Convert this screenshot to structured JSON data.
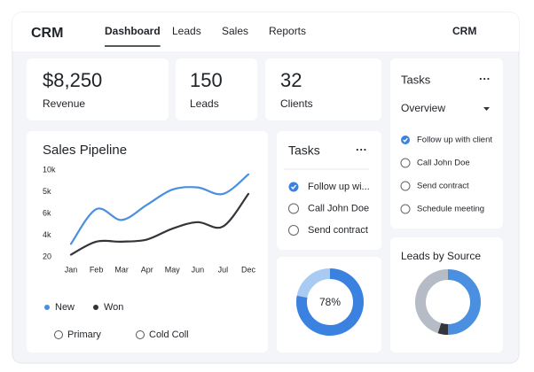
{
  "header": {
    "logo": "CRM",
    "nav": [
      "Dashboard",
      "Leads",
      "Sales",
      "Reports"
    ],
    "active": 0,
    "right": "CRM"
  },
  "stats": [
    {
      "value": "$8,250",
      "label": "Revenue"
    },
    {
      "value": "150",
      "label": "Leads"
    },
    {
      "value": "32",
      "label": "Clients"
    }
  ],
  "chart_data": [
    {
      "type": "line",
      "title": "Sales Pipeline",
      "categories": [
        "Jan",
        "Feb",
        "Mar",
        "Apr",
        "May",
        "Jun",
        "Jul",
        "Dec"
      ],
      "ylim": [
        0,
        4
      ],
      "yticks": [
        {
          "value": 0,
          "label": "20"
        },
        {
          "value": 1,
          "label": "4k"
        },
        {
          "value": 2,
          "label": "6k"
        },
        {
          "value": 3,
          "label": "5k"
        },
        {
          "value": 4,
          "label": "10k"
        }
      ],
      "series": [
        {
          "name": "New",
          "color": "#4a8fe0",
          "values": [
            0.6,
            2.2,
            1.7,
            2.4,
            3.1,
            3.2,
            2.9,
            3.8
          ]
        },
        {
          "name": "Won",
          "color": "#33353a",
          "values": [
            0.1,
            0.7,
            0.7,
            0.8,
            1.3,
            1.6,
            1.4,
            2.9
          ]
        }
      ],
      "options": [
        "Primary",
        "Cold Coll"
      ]
    },
    {
      "type": "donut",
      "values": [
        78
      ],
      "value_labels": [
        "78%"
      ],
      "colors": [
        "#3b82e0"
      ],
      "track_color": "#a9cbf3"
    },
    {
      "type": "donut",
      "title": "Leads by Source",
      "values": [
        50,
        5,
        45
      ],
      "colors": [
        "#4a8fe0",
        "#33353a",
        "#b5bcc6"
      ]
    }
  ],
  "tasks_card": {
    "title": "Tasks",
    "menu": "···",
    "items": [
      "Follow up wi...",
      "Call John Doe",
      "Send contract"
    ],
    "checked": [
      true,
      false,
      false
    ]
  },
  "side_tasks": {
    "title": "Tasks",
    "menu": "···",
    "dropdown": "Overview",
    "items": [
      "Follow up with client",
      "Call John Doe",
      "Send contract",
      "Schedule meeting"
    ],
    "checked": [
      true,
      false,
      false,
      false
    ]
  }
}
